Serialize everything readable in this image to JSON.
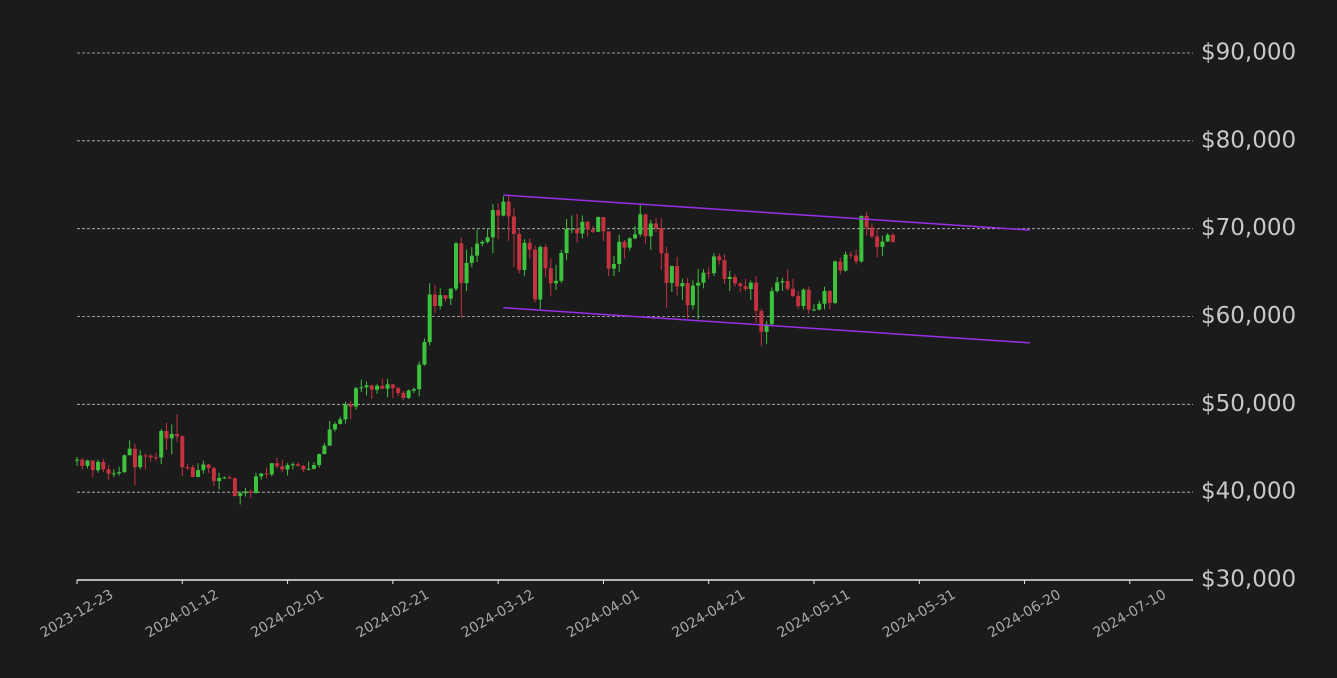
{
  "chart_data": {
    "type": "candlestick",
    "up_color": "#3cc23c",
    "down_color": "#c4313f",
    "grid": true,
    "xlim": [
      "2023-12-23",
      "2024-07-22"
    ],
    "xticks": [
      "2023-12-23",
      "2024-01-12",
      "2024-02-01",
      "2024-02-21",
      "2024-03-12",
      "2024-04-01",
      "2024-04-21",
      "2024-05-11",
      "2024-05-31",
      "2024-06-20",
      "2024-07-10"
    ],
    "ylim": [
      30000,
      90000
    ],
    "yticks": [
      {
        "value": 30000,
        "label": "$30,000"
      },
      {
        "value": 40000,
        "label": "$40,000"
      },
      {
        "value": 50000,
        "label": "$50,000"
      },
      {
        "value": 60000,
        "label": "$60,000"
      },
      {
        "value": 70000,
        "label": "$70,000"
      },
      {
        "value": 80000,
        "label": "$80,000"
      },
      {
        "value": 90000,
        "label": "$90,000"
      }
    ],
    "x": [
      "2023-12-23",
      "2023-12-24",
      "2023-12-25",
      "2023-12-26",
      "2023-12-27",
      "2023-12-28",
      "2023-12-29",
      "2023-12-30",
      "2023-12-31",
      "2024-01-01",
      "2024-01-02",
      "2024-01-03",
      "2024-01-04",
      "2024-01-05",
      "2024-01-06",
      "2024-01-07",
      "2024-01-08",
      "2024-01-09",
      "2024-01-10",
      "2024-01-11",
      "2024-01-12",
      "2024-01-13",
      "2024-01-14",
      "2024-01-15",
      "2024-01-16",
      "2024-01-17",
      "2024-01-18",
      "2024-01-19",
      "2024-01-20",
      "2024-01-21",
      "2024-01-22",
      "2024-01-23",
      "2024-01-24",
      "2024-01-25",
      "2024-01-26",
      "2024-01-27",
      "2024-01-28",
      "2024-01-29",
      "2024-01-30",
      "2024-01-31",
      "2024-02-01",
      "2024-02-02",
      "2024-02-03",
      "2024-02-04",
      "2024-02-05",
      "2024-02-06",
      "2024-02-07",
      "2024-02-08",
      "2024-02-09",
      "2024-02-10",
      "2024-02-11",
      "2024-02-12",
      "2024-02-13",
      "2024-02-14",
      "2024-02-15",
      "2024-02-16",
      "2024-02-17",
      "2024-02-18",
      "2024-02-19",
      "2024-02-20",
      "2024-02-21",
      "2024-02-22",
      "2024-02-23",
      "2024-02-24",
      "2024-02-25",
      "2024-02-26",
      "2024-02-27",
      "2024-02-28",
      "2024-02-29",
      "2024-03-01",
      "2024-03-02",
      "2024-03-03",
      "2024-03-04",
      "2024-03-05",
      "2024-03-06",
      "2024-03-07",
      "2024-03-08",
      "2024-03-09",
      "2024-03-10",
      "2024-03-11",
      "2024-03-12",
      "2024-03-13",
      "2024-03-14",
      "2024-03-15",
      "2024-03-16",
      "2024-03-17",
      "2024-03-18",
      "2024-03-19",
      "2024-03-20",
      "2024-03-21",
      "2024-03-22",
      "2024-03-23",
      "2024-03-24",
      "2024-03-25",
      "2024-03-26",
      "2024-03-27",
      "2024-03-28",
      "2024-03-29",
      "2024-03-30",
      "2024-03-31",
      "2024-04-01",
      "2024-04-02",
      "2024-04-03",
      "2024-04-04",
      "2024-04-05",
      "2024-04-06",
      "2024-04-07",
      "2024-04-08",
      "2024-04-09",
      "2024-04-10",
      "2024-04-11",
      "2024-04-12",
      "2024-04-13",
      "2024-04-14",
      "2024-04-15",
      "2024-04-16",
      "2024-04-17",
      "2024-04-18",
      "2024-04-19",
      "2024-04-20",
      "2024-04-21",
      "2024-04-22",
      "2024-04-23",
      "2024-04-24",
      "2024-04-25",
      "2024-04-26",
      "2024-04-27",
      "2024-04-28",
      "2024-04-29",
      "2024-04-30",
      "2024-05-01",
      "2024-05-02",
      "2024-05-03",
      "2024-05-04",
      "2024-05-05",
      "2024-05-06",
      "2024-05-07",
      "2024-05-08",
      "2024-05-09",
      "2024-05-10",
      "2024-05-11",
      "2024-05-12",
      "2024-05-13",
      "2024-05-14",
      "2024-05-15",
      "2024-05-16",
      "2024-05-17",
      "2024-05-18",
      "2024-05-19",
      "2024-05-20",
      "2024-05-21",
      "2024-05-22",
      "2024-05-23",
      "2024-05-24",
      "2024-05-25",
      "2024-05-26"
    ],
    "open": [
      43600,
      43700,
      43000,
      43600,
      42500,
      43450,
      42600,
      42100,
      42150,
      42280,
      44200,
      44950,
      42850,
      44180,
      44160,
      43970,
      43950,
      46970,
      46120,
      46630,
      46360,
      42850,
      42840,
      41730,
      42510,
      43150,
      42740,
      41260,
      41620,
      41670,
      41580,
      39560,
      39890,
      40080,
      39930,
      41800,
      42120,
      42030,
      43300,
      42940,
      42580,
      43080,
      43180,
      43000,
      42580,
      42660,
      43090,
      44340,
      45290,
      47150,
      47770,
      48290,
      49960,
      49740,
      51830,
      51940,
      52160,
      51660,
      52120,
      51780,
      52280,
      51840,
      51300,
      50730,
      51570,
      51730,
      54520,
      57090,
      62500,
      61200,
      62440,
      62030,
      63170,
      68330,
      63800,
      66100,
      66930,
      68300,
      68500,
      69020,
      72120,
      71480,
      73080,
      71400,
      69400,
      65300,
      68390,
      67610,
      61930,
      67910,
      65490,
      63780,
      64060,
      67230,
      69960,
      69990,
      69460,
      70780,
      69900,
      69650,
      71330,
      69700,
      65450,
      65980,
      68510,
      67840,
      68900,
      69360,
      71630,
      69140,
      70590,
      70060,
      67200,
      63820,
      65740,
      63430,
      63810,
      61280,
      63510,
      63840,
      64990,
      64930,
      66840,
      66410,
      64280,
      64500,
      63770,
      63460,
      63120,
      63840,
      60640,
      58250,
      59120,
      62890,
      63890,
      64030,
      63160,
      62340,
      61190,
      63050,
      60790,
      60790,
      61450,
      62900,
      61550,
      66270,
      65230,
      67050,
      66940,
      66280,
      71450,
      70140,
      69120,
      67930,
      68530,
      69290
    ],
    "high": [
      44000,
      43900,
      43700,
      43650,
      43700,
      43800,
      43100,
      42600,
      42900,
      44300,
      45900,
      45500,
      44800,
      44400,
      44300,
      44500,
      47200,
      47900,
      47700,
      48900,
      46500,
      43200,
      43100,
      43300,
      43600,
      43200,
      42900,
      42200,
      41800,
      41900,
      41700,
      40100,
      40500,
      40300,
      42200,
      42200,
      42800,
      43300,
      43900,
      43700,
      43300,
      43400,
      43400,
      43100,
      43500,
      43400,
      44400,
      45600,
      48100,
      48000,
      48600,
      50300,
      50400,
      52000,
      52800,
      52600,
      52200,
      52300,
      52900,
      52900,
      52300,
      52000,
      51500,
      51700,
      51900,
      54900,
      57500,
      63800,
      63600,
      63200,
      62400,
      63200,
      68500,
      69000,
      67600,
      67900,
      69900,
      68700,
      70000,
      72800,
      72900,
      73700,
      73800,
      72400,
      70000,
      68800,
      68900,
      68100,
      68100,
      68200,
      66600,
      65900,
      67600,
      71100,
      71500,
      71700,
      71500,
      70900,
      70300,
      71400,
      71300,
      69700,
      66900,
      69300,
      68700,
      69000,
      70300,
      72700,
      71700,
      71000,
      71200,
      71200,
      67900,
      65800,
      66800,
      64300,
      64400,
      64100,
      65400,
      65400,
      65600,
      67200,
      67200,
      67100,
      65200,
      64800,
      63900,
      64300,
      64100,
      64600,
      60900,
      59500,
      63300,
      64500,
      64400,
      65400,
      64300,
      62900,
      63200,
      63400,
      61400,
      61800,
      63400,
      63000,
      66400,
      66700,
      67400,
      67400,
      67600,
      71500,
      71900,
      70600,
      70000,
      69200,
      69500,
      69500
    ],
    "low": [
      43000,
      42600,
      42700,
      41700,
      42200,
      42300,
      41400,
      41700,
      41900,
      42200,
      44200,
      40800,
      42600,
      42600,
      43500,
      43600,
      43200,
      44800,
      44300,
      45700,
      41800,
      42500,
      41700,
      41700,
      42100,
      42200,
      40700,
      40300,
      41500,
      41500,
      39500,
      38600,
      39500,
      39300,
      39800,
      41400,
      41600,
      41800,
      42700,
      42300,
      41900,
      42600,
      42900,
      42300,
      42500,
      42600,
      42800,
      44300,
      45300,
      46900,
      47700,
      47800,
      48300,
      49400,
      51400,
      51000,
      50600,
      51200,
      51700,
      50800,
      50700,
      50900,
      50500,
      50600,
      51300,
      50900,
      54400,
      56700,
      60400,
      60800,
      61700,
      61300,
      62900,
      59900,
      62900,
      65600,
      66200,
      68000,
      68300,
      67200,
      68800,
      71400,
      68600,
      65600,
      64900,
      64600,
      66600,
      61600,
      60800,
      64500,
      62300,
      63000,
      63800,
      66400,
      69500,
      68400,
      68900,
      69100,
      69500,
      69600,
      68600,
      64600,
      64600,
      65100,
      66600,
      67500,
      68800,
      69100,
      68300,
      67600,
      69600,
      65300,
      61000,
      62800,
      62400,
      61900,
      59800,
      60800,
      59700,
      63200,
      64300,
      64600,
      65900,
      63700,
      62900,
      63400,
      62800,
      62900,
      61900,
      59300,
      56600,
      56900,
      58900,
      62700,
      62900,
      62900,
      62200,
      60900,
      60800,
      60300,
      60600,
      60700,
      60800,
      60800,
      61400,
      64800,
      65100,
      66600,
      65900,
      66100,
      69200,
      68900,
      66700,
      66900,
      68500,
      68400
    ],
    "close": [
      43700,
      43000,
      43600,
      42500,
      43450,
      42600,
      42100,
      42150,
      42280,
      44200,
      44950,
      42850,
      44180,
      44160,
      43970,
      43950,
      46970,
      46120,
      46630,
      46360,
      42850,
      42840,
      41730,
      42510,
      43150,
      42740,
      41260,
      41620,
      41670,
      41580,
      39560,
      39890,
      40080,
      39930,
      41800,
      42120,
      42030,
      43300,
      42940,
      42580,
      43080,
      43180,
      43000,
      42580,
      42660,
      43090,
      44340,
      45290,
      47150,
      47770,
      48290,
      49960,
      49740,
      51830,
      51940,
      52160,
      51660,
      52120,
      51780,
      52280,
      51840,
      51300,
      50730,
      51570,
      51730,
      54520,
      57090,
      62500,
      61200,
      62440,
      62030,
      63170,
      68330,
      63800,
      66100,
      66930,
      68300,
      68500,
      69020,
      72120,
      71480,
      73080,
      71400,
      69400,
      65300,
      68390,
      67610,
      61930,
      67910,
      65490,
      63780,
      64060,
      67230,
      69960,
      69990,
      69460,
      70780,
      69900,
      69650,
      71330,
      69700,
      65450,
      65980,
      68510,
      67840,
      68900,
      69360,
      71630,
      69140,
      70590,
      70060,
      67200,
      63820,
      65740,
      63430,
      63810,
      61280,
      63510,
      63840,
      64990,
      64930,
      66840,
      66410,
      64280,
      64500,
      63770,
      63460,
      63120,
      63840,
      60640,
      58250,
      59120,
      62890,
      63890,
      64030,
      63160,
      62340,
      61190,
      63050,
      60790,
      60790,
      61450,
      62900,
      61550,
      66270,
      65230,
      67050,
      66940,
      66280,
      71450,
      70140,
      69120,
      67930,
      68530,
      69290,
      68500
    ],
    "trendline_color": "#9b2fe8",
    "trendlines": [
      {
        "x": [
          "2024-03-13",
          "2024-06-21"
        ],
        "y": [
          73830,
          69840
        ]
      },
      {
        "x": [
          "2024-03-13",
          "2024-06-21"
        ],
        "y": [
          61000,
          57000
        ]
      }
    ]
  }
}
